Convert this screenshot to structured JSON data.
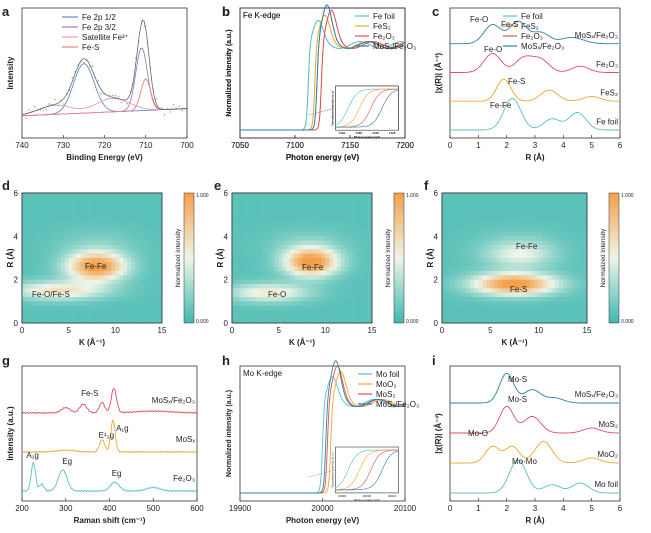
{
  "chart_data": [
    {
      "id": "a",
      "type": "line",
      "panel_label": "a",
      "xlabel": "Binding Energy (eV)",
      "ylabel": "Intensity",
      "xlim": [
        740,
        700
      ],
      "xreverse": true,
      "xticks": [
        "740",
        "730",
        "720",
        "710",
        "700"
      ],
      "legend": [
        "Fe 2p 1/2",
        "Fe 2p 3/2",
        "Satellite Fe3+",
        "Fe-S"
      ],
      "series": [
        {
          "name": "Fe 2p 1/2",
          "color": "#6a8cc8",
          "peaks": [
            [
              725,
              0.55,
              2.5
            ]
          ]
        },
        {
          "name": "Fe 2p 3/2",
          "color": "#9b7fc0",
          "peaks": [
            [
              711,
              0.7,
              1.4
            ]
          ]
        },
        {
          "name": "Satellite Fe3+",
          "color": "#e8a0a8",
          "peaks": [
            [
              718,
              0.15,
              4
            ],
            [
              732,
              0.1,
              4
            ]
          ]
        },
        {
          "name": "Fe-S",
          "color": "#f08080",
          "peaks": [
            [
              710,
              0.35,
              1.2
            ]
          ]
        }
      ]
    },
    {
      "id": "b",
      "type": "line",
      "panel_label": "b",
      "title": "Fe K-edge",
      "xlabel": "Photon energy (eV)",
      "ylabel": "Normalized intensity (a.u.)",
      "xlim": [
        7050,
        7200
      ],
      "xticks": [
        "7050",
        "7100",
        "7150",
        "7200"
      ],
      "series": [
        {
          "name": "Fe foil",
          "color": "#5bbfc6",
          "edge": 7112
        },
        {
          "name": "FeS2",
          "color": "#f0a830",
          "edge": 7118
        },
        {
          "name": "Fe2O3",
          "color": "#e0505a",
          "edge": 7124
        },
        {
          "name": "MoSx/Fe2O3",
          "color": "#2f7fa8",
          "edge": 7120
        }
      ],
      "inset": {
        "xlabel": "Photon energy (eV)",
        "ylabel": "Normalized intensity (a.u.)",
        "xticks": [
          "7110",
          "7115",
          "7120",
          "7125"
        ]
      }
    },
    {
      "id": "c",
      "type": "line",
      "panel_label": "c",
      "xlabel": "R (Å)",
      "ylabel": "|χ(R)| (Å⁻³)",
      "xlim": [
        0,
        6
      ],
      "xticks": [
        "0",
        "1",
        "2",
        "3",
        "4",
        "5",
        "6"
      ],
      "series": [
        {
          "name": "MoSx/Fe2O3",
          "color": "#2f7fa8",
          "offset": 3
        },
        {
          "name": "Fe2O3",
          "color": "#e0505a",
          "offset": 2
        },
        {
          "name": "FeS2",
          "color": "#f0a830",
          "offset": 1
        },
        {
          "name": "Fe foil",
          "color": "#5bbfc6",
          "offset": 0
        }
      ],
      "annotations": [
        "Fe-O",
        "Fe-S",
        "Fe-O",
        "Fe-S",
        "Fe-Fe"
      ]
    },
    {
      "id": "d",
      "type": "heatmap",
      "panel_label": "d",
      "xlabel": "K (Å⁻¹)",
      "ylabel": "R (Å)",
      "xlim": [
        0,
        15
      ],
      "ylim": [
        0,
        6
      ],
      "xticks": [
        "0",
        "5",
        "10",
        "15"
      ],
      "yticks": [
        "0",
        "2",
        "4",
        "6"
      ],
      "colorbar": {
        "label": "Normalized intensity",
        "max": "1.000",
        "min": "0.000"
      },
      "spots": [
        [
          8,
          2.6,
          1.0,
          2.2,
          0.45
        ],
        [
          4,
          1.5,
          0.55,
          3.5,
          0.3
        ]
      ],
      "annotations": [
        "Fe-Fe",
        "Fe-O/Fe-S"
      ]
    },
    {
      "id": "e",
      "type": "heatmap",
      "panel_label": "e",
      "xlabel": "K (Å⁻¹)",
      "ylabel": "R (Å)",
      "xlim": [
        0,
        15
      ],
      "ylim": [
        0,
        6
      ],
      "xticks": [
        "0",
        "5",
        "10",
        "15"
      ],
      "yticks": [
        "0",
        "2",
        "4",
        "6"
      ],
      "colorbar": {
        "label": "Normalized intensity",
        "max": "1.000",
        "min": "0.000"
      },
      "spots": [
        [
          8.5,
          2.8,
          1.0,
          2.0,
          0.45
        ],
        [
          4,
          1.4,
          0.5,
          3,
          0.3
        ]
      ],
      "annotations": [
        "Fe-Fe",
        "Fe-O"
      ]
    },
    {
      "id": "f",
      "type": "heatmap",
      "panel_label": "f",
      "xlabel": "K (Å⁻¹)",
      "ylabel": "R (Å)",
      "xlim": [
        0,
        15
      ],
      "ylim": [
        0,
        6
      ],
      "xticks": [
        "0",
        "5",
        "10",
        "15"
      ],
      "yticks": [
        "0",
        "2",
        "4",
        "6"
      ],
      "colorbar": {
        "label": "Normalized intensity",
        "max": "1.000",
        "min": "0.000"
      },
      "spots": [
        [
          7.5,
          1.8,
          1.0,
          3.0,
          0.35
        ],
        [
          8,
          3.1,
          0.35,
          2.5,
          0.4
        ]
      ],
      "annotations": [
        "Fe-Fe",
        "Fe-S"
      ]
    },
    {
      "id": "g",
      "type": "line",
      "panel_label": "g",
      "xlabel": "Raman shift (cm⁻¹)",
      "ylabel": "Intensity (a.u.)",
      "xlim": [
        200,
        600
      ],
      "xticks": [
        "200",
        "300",
        "400",
        "500",
        "600"
      ],
      "series": [
        {
          "name": "MoSx/Fe2O3",
          "color": "#e0505a",
          "offset": 2
        },
        {
          "name": "MoSx",
          "color": "#f0a830",
          "offset": 1
        },
        {
          "name": "Fe2O3",
          "color": "#5bbfc6",
          "offset": 0
        }
      ],
      "annotations": [
        "Fe-S",
        "E¹₂g",
        "A₁g",
        "A₁g",
        "Eg",
        "Eg"
      ]
    },
    {
      "id": "h",
      "type": "line",
      "panel_label": "h",
      "title": "Mo K-edge",
      "xlabel": "Photon energy (eV)",
      "ylabel": "Normalized intensity (a.u.)",
      "xlim": [
        19900,
        20100
      ],
      "xticks": [
        "19900",
        "20000",
        "20100"
      ],
      "series": [
        {
          "name": "Mo foil",
          "color": "#5bbfc6",
          "edge": 20000
        },
        {
          "name": "MoO2",
          "color": "#f0a830",
          "edge": 20010
        },
        {
          "name": "MoS2",
          "color": "#e0505a",
          "edge": 20006
        },
        {
          "name": "MoSx/Fe2O3",
          "color": "#2f7fa8",
          "edge": 20004
        }
      ],
      "inset": {
        "xlabel": "Photon energy (eV)",
        "ylabel": "Normalized intensity (a.u.)",
        "xticks": [
          "19990",
          "20000",
          "20010"
        ]
      }
    },
    {
      "id": "i",
      "type": "line",
      "panel_label": "i",
      "xlabel": "R (Å)",
      "ylabel": "|χ(R)| (Å⁻³)",
      "xlim": [
        0,
        6
      ],
      "xticks": [
        "0",
        "1",
        "2",
        "3",
        "4",
        "5",
        "6"
      ],
      "series": [
        {
          "name": "MoSx/Fe2O3",
          "color": "#2f7fa8",
          "offset": 3
        },
        {
          "name": "MoS2",
          "color": "#e0505a",
          "offset": 2
        },
        {
          "name": "MoO2",
          "color": "#f0a830",
          "offset": 1
        },
        {
          "name": "Mo foil",
          "color": "#5bbfc6",
          "offset": 0
        }
      ],
      "annotations": [
        "Mo-S",
        "Mo-S",
        "Mo-O",
        "Mo-Mo"
      ]
    }
  ],
  "colormap": {
    "low": "#3fb8b0",
    "mid": "#eef5e8",
    "high": "#f4a04a"
  }
}
